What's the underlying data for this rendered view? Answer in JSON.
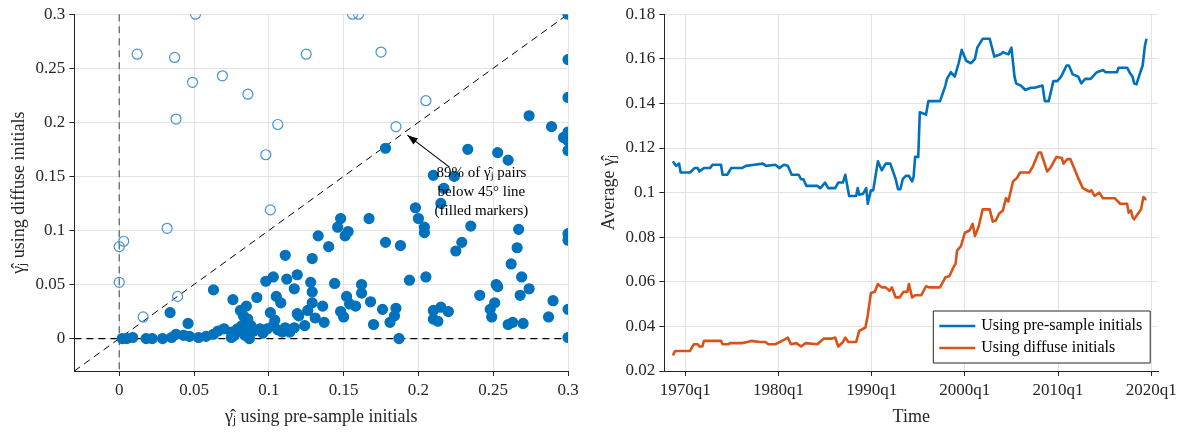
{
  "chart_data": [
    {
      "type": "scatter",
      "xlabel": "γ̂ⱼ using pre-sample initials",
      "ylabel": "γ̂ⱼ using diffuse initials",
      "grid": true,
      "xlim": [
        -0.03,
        0.3
      ],
      "ylim": [
        -0.03,
        0.3
      ],
      "xticks": [
        0,
        0.05,
        0.1,
        0.15,
        0.2,
        0.25,
        0.3
      ],
      "yticks": [
        0,
        0.05,
        0.1,
        0.15,
        0.2,
        0.25,
        0.3
      ],
      "series": [
        {
          "color": "#4393d8",
          "marker": "circle",
          "x": [
            0.012,
            0.037,
            0.051,
            0.049,
            0.069,
            0.038,
            0.086,
            0.125,
            0.106,
            0.098,
            0.101,
            0.156,
            0.16,
            0.175,
            0.205,
            0.185,
            0.032,
            0.003,
            0,
            0,
            0.039,
            0.016
          ],
          "values": [
            0.263,
            0.26,
            0.3,
            0.237,
            0.243,
            0.203,
            0.226,
            0.263,
            0.198,
            0.17,
            0.119,
            0.3,
            0.3,
            0.265,
            0.22,
            0.196,
            0.102,
            0.09,
            0.085,
            0.052,
            0.039,
            0.02
          ]
        },
        {
          "color": "#0072bd",
          "marker": "circle",
          "x": [
            0.3,
            0.3,
            0.3,
            0.274,
            0.289,
            0.3,
            0.297,
            0.3,
            0.3,
            0.178,
            0.233,
            0.253,
            0.26,
            0.21,
            0.224,
            0.217,
            0.215,
            0.198,
            0.2,
            0.148,
            0.167,
            0.146,
            0.153,
            0.151,
            0.133,
            0.204,
            0.204,
            0.235,
            0.267,
            0.3,
            0.3,
            0.178,
            0.188,
            0.229,
            0.225,
            0.266,
            0.14,
            0.111,
            0.129,
            0.262,
            0.194,
            0.205,
            0.269,
            0.119,
            0.112,
            0.103,
            0.098,
            0.128,
            0.144,
            0.162,
            0.252,
            0.253,
            0.117,
            0.063,
            0.129,
            0.162,
            0.268,
            0.274,
            0.241,
            0.105,
            0.152,
            0.092,
            0.108,
            0.129,
            0.168,
            0.29,
            0.251,
            0.076,
            0.136,
            0.154,
            0.158,
            0.185,
            0.248,
            0.3,
            0.21,
            0.215,
            0.22,
            0.176,
            0.148,
            0.126,
            0.101,
            0.085,
            0.081,
            0.034,
            0.119,
            0.12,
            0.184,
            0.15,
            0.131,
            0.249,
            0.287,
            0.21,
            0.213,
            0.181,
            0.137,
            0.26,
            0.263,
            0.27,
            0.17,
            0.124,
            0.046,
            0.104,
            0.086,
            0.083,
            0.3,
            0.187,
            0.002,
            0.005,
            0.009,
            0.018,
            0.022,
            0.029,
            0.035,
            0.038,
            0.043,
            0.047,
            0.053,
            0.058,
            0.063,
            0.066,
            0.07,
            0.075,
            0.077,
            0.079,
            0.082,
            0.084,
            0.087,
            0.088,
            0.09,
            0.094,
            0.096,
            0.099,
            0.103,
            0.106,
            0.109,
            0.111,
            0.114,
            0.117,
            0.075,
            0.084
          ],
          "values": [
            0.3,
            0.258,
            0.223,
            0.206,
            0.196,
            0.191,
            0.186,
            0.183,
            0.174,
            0.176,
            0.175,
            0.172,
            0.165,
            0.151,
            0.15,
            0.139,
            0.125,
            0.121,
            0.111,
            0.111,
            0.111,
            0.103,
            0.099,
            0.095,
            0.095,
            0.103,
            0.098,
            0.104,
            0.101,
            0.097,
            0.091,
            0.089,
            0.086,
            0.089,
            0.081,
            0.084,
            0.085,
            0.077,
            0.074,
            0.069,
            0.054,
            0.057,
            0.057,
            0.059,
            0.055,
            0.057,
            0.053,
            0.052,
            0.051,
            0.05,
            0.05,
            0.048,
            0.046,
            0.045,
            0.043,
            0.042,
            0.04,
            0.046,
            0.04,
            0.039,
            0.039,
            0.038,
            0.033,
            0.033,
            0.034,
            0.035,
            0.033,
            0.036,
            0.03,
            0.032,
            0.03,
            0.028,
            0.027,
            0.027,
            0.026,
            0.029,
            0.025,
            0.027,
            0.025,
            0.026,
            0.024,
            0.03,
            0.026,
            0.024,
            0.023,
            0.021,
            0.021,
            0.02,
            0.019,
            0.02,
            0.02,
            0.018,
            0.016,
            0.015,
            0.015,
            0.013,
            0.015,
            0.014,
            0.013,
            0.012,
            0.014,
            0.017,
            0.018,
            0.021,
            0.001,
            0,
            0,
            0,
            0.001,
            0,
            0,
            0,
            0.001,
            0.004,
            0.003,
            0.002,
            0.001,
            0.002,
            0.004,
            0.007,
            0.009,
            0.006,
            0.003,
            0.009,
            0.012,
            0.01,
            0,
            0.012,
            0.007,
            0.009,
            0.005,
            0.009,
            0.012,
            0.008,
            0.006,
            0.01,
            0.006,
            0.01,
            0.001,
            0.003
          ]
        },
        {
          "type": "line",
          "color": "#000000",
          "line_style": "dashed",
          "x": [
            -0.03,
            0.3
          ],
          "values": [
            -0.03,
            0.3
          ]
        }
      ],
      "ref_lines": [
        {
          "axis": "x",
          "value": 0,
          "color": "#666666",
          "line_style": "dashed"
        },
        {
          "axis": "y",
          "value": 0,
          "color": "#000000",
          "line_style": "dashed"
        }
      ],
      "annotations": [
        {
          "text": "89% of γ̂ⱼ pairs below 45° line (filled markers)",
          "x": 0.19,
          "y": 0.19
        }
      ]
    },
    {
      "type": "line",
      "xlabel": "Time",
      "ylabel": "Average γ̂ⱼ",
      "grid": true,
      "legend": "bottom right",
      "xlim": [
        "1967-10",
        "2020-10"
      ],
      "ylim": [
        0.02,
        0.18
      ],
      "xticks": [
        {
          "value": "1970-01",
          "label": "1970q1"
        },
        {
          "value": "1980-01",
          "label": "1980q1"
        },
        {
          "value": "1990-01",
          "label": "1990q1"
        },
        {
          "value": "2000-01",
          "label": "2000q1"
        },
        {
          "value": "2010-01",
          "label": "2010q1"
        },
        {
          "value": "2020-01",
          "label": "2020q1"
        }
      ],
      "yticks": [
        0.02,
        0.04,
        0.06,
        0.08,
        0.1,
        0.12,
        0.14,
        0.16,
        0.18
      ],
      "series": [
        {
          "name": "Using pre-sample initials",
          "color": "#0072bd",
          "x": [
            "1968-09",
            "1969-01",
            "1969-05",
            "1969-07",
            "1970-07",
            "1971-01",
            "1971-05",
            "1971-07",
            "1972-01",
            "1972-09",
            "1972-12",
            "1973-11",
            "1974-01",
            "1974-07",
            "1974-12",
            "1976-02",
            "1976-07",
            "1977-06",
            "1978-05",
            "1978-09",
            "1979-09",
            "1980-02",
            "1980-08",
            "1981-01",
            "1981-06",
            "1982-03",
            "1982-06",
            "1982-09",
            "1983-01",
            "1984-03",
            "1984-07",
            "1985-01",
            "1985-05",
            "1986-02",
            "1986-06",
            "1986-12",
            "1987-03",
            "1987-08",
            "1988-05",
            "1988-07",
            "1988-09",
            "1989-02",
            "1989-06",
            "1989-08",
            "1989-12",
            "1990-03",
            "1990-09",
            "1991-02",
            "1991-07",
            "1992-01",
            "1992-08",
            "1992-11",
            "1993-02",
            "1993-05",
            "1993-09",
            "1994-01",
            "1994-05",
            "1994-07",
            "1994-09",
            "1995-01",
            "1995-03",
            "1995-11",
            "1996-02",
            "1997-05",
            "1997-12",
            "1998-02",
            "1998-07",
            "1998-12",
            "1999-05",
            "1999-09",
            "2000-03",
            "2000-09",
            "2001-02",
            "2001-05",
            "2001-12",
            "2002-09",
            "2003-03",
            "2003-11",
            "2004-02",
            "2004-09",
            "2005-01",
            "2005-05",
            "2005-07",
            "2006-01",
            "2006-07",
            "2007-02",
            "2007-07",
            "2008-05",
            "2008-08",
            "2009-01",
            "2009-07",
            "2009-12",
            "2010-05",
            "2010-12",
            "2011-03",
            "2011-08",
            "2012-03",
            "2012-07",
            "2012-12",
            "2013-07",
            "2014-03",
            "2014-11",
            "2015-02",
            "2016-05",
            "2016-07",
            "2017-06",
            "2017-09",
            "2018-01",
            "2018-03",
            "2018-06",
            "2018-12",
            "2019-02",
            "2019-05",
            "2019-07"
          ],
          "values": [
            0.114,
            0.112,
            0.113,
            0.109,
            0.109,
            0.111,
            0.111,
            0.1095,
            0.111,
            0.111,
            0.1125,
            0.1125,
            0.108,
            0.108,
            0.111,
            0.111,
            0.112,
            0.1125,
            0.113,
            0.112,
            0.1125,
            0.111,
            0.1125,
            0.112,
            0.108,
            0.108,
            0.106,
            0.106,
            0.103,
            0.103,
            0.102,
            0.1045,
            0.102,
            0.102,
            0.1045,
            0.1045,
            0.108,
            0.0985,
            0.0985,
            0.102,
            0.099,
            0.0995,
            0.102,
            0.095,
            0.101,
            0.101,
            0.114,
            0.11,
            0.113,
            0.113,
            0.106,
            0.1015,
            0.1015,
            0.106,
            0.1075,
            0.1075,
            0.105,
            0.107,
            0.116,
            0.116,
            0.136,
            0.135,
            0.141,
            0.141,
            0.148,
            0.151,
            0.154,
            0.152,
            0.158,
            0.164,
            0.159,
            0.158,
            0.16,
            0.165,
            0.169,
            0.169,
            0.161,
            0.162,
            0.163,
            0.162,
            0.165,
            0.152,
            0.149,
            0.148,
            0.146,
            0.147,
            0.147,
            0.148,
            0.141,
            0.141,
            0.15,
            0.15,
            0.152,
            0.157,
            0.157,
            0.153,
            0.152,
            0.149,
            0.151,
            0.151,
            0.154,
            0.155,
            0.154,
            0.154,
            0.156,
            0.156,
            0.154,
            0.152,
            0.149,
            0.1485,
            0.155,
            0.157,
            0.166,
            0.169
          ]
        },
        {
          "name": "Using diffuse initials",
          "color": "#d95319",
          "x": [
            "1968-09",
            "1968-12",
            "1969-12",
            "1970-07",
            "1970-12",
            "1971-05",
            "1971-07",
            "1971-11",
            "1972-01",
            "1973-11",
            "1974-01",
            "1974-08",
            "1974-11",
            "1976-02",
            "1976-09",
            "1977-02",
            "1978-01",
            "1978-08",
            "1978-12",
            "1979-09",
            "1980-08",
            "1981-01",
            "1981-05",
            "1981-12",
            "1982-06",
            "1982-12",
            "1984-03",
            "1984-11",
            "1985-09",
            "1986-02",
            "1986-06",
            "1986-12",
            "1987-03",
            "1987-07",
            "1988-05",
            "1988-09",
            "1989-05",
            "1989-08",
            "1989-12",
            "1990-05",
            "1990-09",
            "1991-02",
            "1991-07",
            "1991-12",
            "1992-03",
            "1992-08",
            "1993-01",
            "1993-06",
            "1993-11",
            "1994-01",
            "1994-05",
            "1994-09",
            "1995-05",
            "1995-11",
            "1996-03",
            "1997-05",
            "1997-12",
            "1998-05",
            "1998-11",
            "1999-01",
            "1999-03",
            "1999-08",
            "2000-01",
            "2000-07",
            "2000-11",
            "2001-02",
            "2001-07",
            "2001-12",
            "2002-09",
            "2003-01",
            "2003-05",
            "2003-09",
            "2004-02",
            "2004-06",
            "2004-09",
            "2005-03",
            "2005-08",
            "2005-12",
            "2006-12",
            "2007-05",
            "2007-12",
            "2008-03",
            "2008-11",
            "2009-03",
            "2009-11",
            "2010-06",
            "2010-08",
            "2011-01",
            "2011-05",
            "2012-03",
            "2012-09",
            "2013-05",
            "2013-08",
            "2013-12",
            "2014-06",
            "2014-11",
            "2016-02",
            "2016-09",
            "2017-06",
            "2017-08",
            "2017-11",
            "2018-01",
            "2018-03",
            "2018-12",
            "2019-03",
            "2019-06",
            "2019-07"
          ],
          "values": [
            0.027,
            0.029,
            0.029,
            0.029,
            0.032,
            0.032,
            0.031,
            0.031,
            0.0335,
            0.0335,
            0.032,
            0.032,
            0.0325,
            0.0325,
            0.033,
            0.0335,
            0.033,
            0.033,
            0.032,
            0.032,
            0.034,
            0.035,
            0.032,
            0.0325,
            0.031,
            0.0325,
            0.032,
            0.0345,
            0.0345,
            0.035,
            0.031,
            0.033,
            0.035,
            0.033,
            0.033,
            0.038,
            0.0395,
            0.045,
            0.055,
            0.0555,
            0.059,
            0.0575,
            0.0575,
            0.056,
            0.0575,
            0.053,
            0.053,
            0.0555,
            0.0555,
            0.059,
            0.053,
            0.054,
            0.054,
            0.058,
            0.0575,
            0.0575,
            0.062,
            0.0625,
            0.067,
            0.068,
            0.074,
            0.076,
            0.082,
            0.083,
            0.086,
            0.0805,
            0.085,
            0.0925,
            0.0925,
            0.087,
            0.0875,
            0.0905,
            0.092,
            0.0975,
            0.096,
            0.105,
            0.1065,
            0.109,
            0.109,
            0.112,
            0.118,
            0.118,
            0.1095,
            0.111,
            0.116,
            0.1155,
            0.113,
            0.115,
            0.115,
            0.1065,
            0.102,
            0.1005,
            0.101,
            0.0985,
            0.1,
            0.0975,
            0.0975,
            0.095,
            0.095,
            0.091,
            0.092,
            0.089,
            0.088,
            0.0925,
            0.098,
            0.097,
            0.097
          ]
        }
      ]
    }
  ]
}
